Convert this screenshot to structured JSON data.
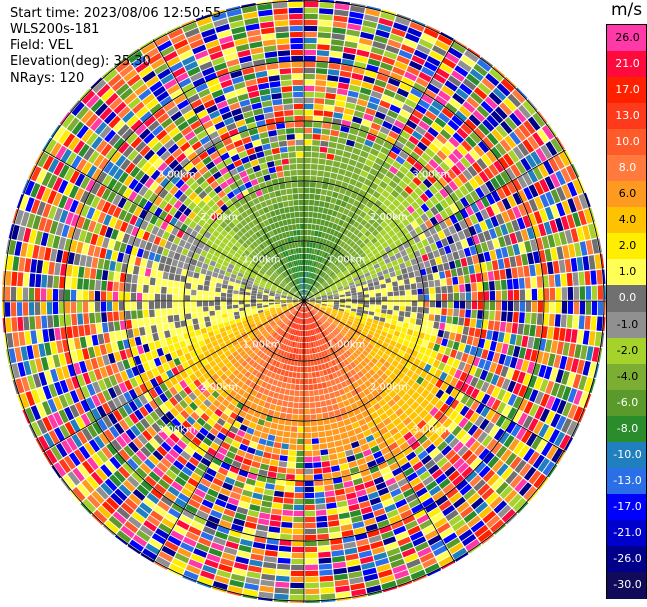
{
  "header": {
    "start_time": "Start time: 2023/08/06 12:50:55",
    "instrument": "WLS200s-181",
    "field": "Field: VEL",
    "elevation": "Elevation(deg): 35.30",
    "nrays": "NRays: 120"
  },
  "colorbar": {
    "unit": "m/s",
    "levels": [
      26.0,
      21.0,
      17.0,
      13.0,
      10.0,
      8.0,
      6.0,
      4.0,
      2.0,
      1.0,
      0.0,
      -1.0,
      -2.0,
      -4.0,
      -6.0,
      -8.0,
      -10.0,
      -13.0,
      -17.0,
      -21.0,
      -26.0,
      -30.0
    ],
    "tick_labels": [
      "26.0",
      "21.0",
      "17.0",
      "13.0",
      "10.0",
      "8.0",
      "6.0",
      "4.0",
      "2.0",
      "1.0",
      "0.0",
      "-1.0",
      "-2.0",
      "-4.0",
      "-6.0",
      "-8.0",
      "-10.0",
      "-13.0",
      "-17.0",
      "-21.0",
      "-26.0",
      "-30.0"
    ],
    "colors": [
      "#ff3aa8",
      "#ff0a3c",
      "#ff2000",
      "#ff3a1a",
      "#ff5a2a",
      "#ff7a3c",
      "#ff9a20",
      "#ffc200",
      "#ffee00",
      "#ffff55",
      "#707070",
      "#909090",
      "#a6d22c",
      "#7dae34",
      "#5a9a2a",
      "#2a8c2a",
      "#1f7fbf",
      "#2a6fe8",
      "#0000ff",
      "#0000cc",
      "#00008b",
      "#0f0a5a"
    ]
  },
  "chart_data": {
    "type": "heatmap",
    "projection": "polar-ppi",
    "field": "VEL",
    "unit": "m/s",
    "nrays": 120,
    "ring_labels_km": [
      "1.00km",
      "2.00km",
      "3.00km"
    ],
    "ring_radii_km": [
      1.0,
      2.0,
      3.0
    ],
    "max_range_km": 5.0,
    "velocity_pattern": {
      "north_sector_near": -8.0,
      "north_sector_mid": -4.0,
      "south_sector_near": 10.0,
      "south_sector_mid": 4.0,
      "east_west_near": 0.0,
      "outer_noise": "random"
    },
    "grid": true
  }
}
